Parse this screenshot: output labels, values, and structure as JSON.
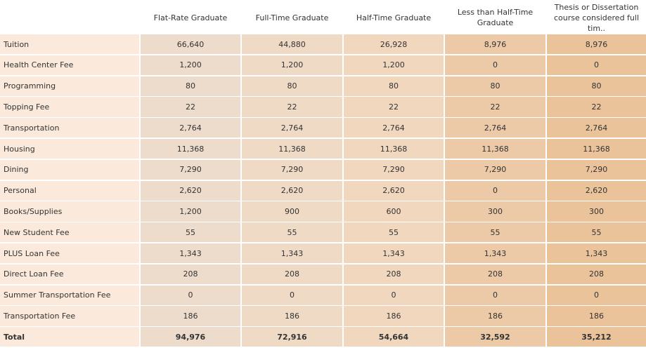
{
  "table": {
    "columns": [
      "Flat-Rate Graduate",
      "Full-Time Graduate",
      "Half-Time Graduate",
      "Less than Half-Time Graduate",
      "Thesis or Dissertation course considered full tim.."
    ],
    "rows": [
      [
        "Tuition",
        "66,640",
        "44,880",
        "26,928",
        "8,976",
        "8,976"
      ],
      [
        "Health Center Fee",
        "1,200",
        "1,200",
        "1,200",
        "0",
        "0"
      ],
      [
        "Programming",
        "80",
        "80",
        "80",
        "80",
        "80"
      ],
      [
        "Topping Fee",
        "22",
        "22",
        "22",
        "22",
        "22"
      ],
      [
        "Transportation",
        "2,764",
        "2,764",
        "2,764",
        "2,764",
        "2,764"
      ],
      [
        "Housing",
        "11,368",
        "11,368",
        "11,368",
        "11,368",
        "11,368"
      ],
      [
        "Dining",
        "7,290",
        "7,290",
        "7,290",
        "7,290",
        "7,290"
      ],
      [
        "Personal",
        "2,620",
        "2,620",
        "2,620",
        "0",
        "2,620"
      ],
      [
        "Books/Supplies",
        "1,200",
        "900",
        "600",
        "300",
        "300"
      ],
      [
        "New Student Fee",
        "55",
        "55",
        "55",
        "55",
        "55"
      ],
      [
        "PLUS Loan Fee",
        "1,343",
        "1,343",
        "1,343",
        "1,343",
        "1,343"
      ],
      [
        "Direct Loan Fee",
        "208",
        "208",
        "208",
        "208",
        "208"
      ],
      [
        "Summer Transportation Fee",
        "0",
        "0",
        "0",
        "0",
        "0"
      ],
      [
        "Transportation Fee",
        "186",
        "186",
        "186",
        "186",
        "186"
      ],
      [
        "Total",
        "94,976",
        "72,916",
        "54,664",
        "32,592",
        "35,212"
      ]
    ]
  }
}
